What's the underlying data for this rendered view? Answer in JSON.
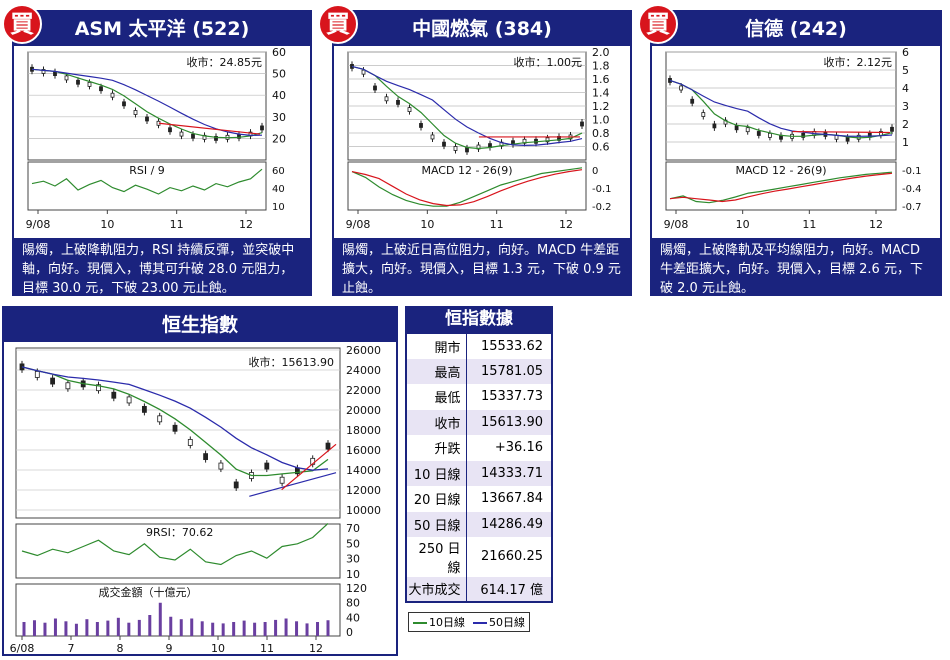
{
  "badge": "買",
  "colors": {
    "navy": "#1a237e",
    "red": "#d8141c",
    "green": "#2e8b2e",
    "blue": "#2b2bab",
    "price": "#222222"
  },
  "panels": {
    "asm": {
      "title": "ASM 太平洋 (522)",
      "close_label": "收市：24.85元",
      "ind_label": "RSI / 9",
      "desc": "陽燭，上破降軌阻力，RSI 持續反彈，並突破中軸，向好。現價入，博其可升破 28.0 元阻力，目標 30.0 元，下破 23.00 元止蝕。"
    },
    "towngas": {
      "title": "中國燃氣 (384)",
      "close_label": "收市：1.00元",
      "ind_label": "MACD 12 - 26(9)",
      "desc": "陽燭，上破近日高位阻力，向好。MACD 牛差距擴大，向好。現價入，目標 1.3 元，下破 0.9 元止蝕。"
    },
    "shunde": {
      "title": "信德 (242)",
      "close_label": "收市：2.12元",
      "ind_label": "MACD 12 - 26(9)",
      "desc": "陽燭，上破降軌及平均線阻力，向好。MACD 牛差距擴大，向好。現價入，目標 2.6 元，下破 2.0 元止蝕。"
    },
    "hsi": {
      "title": "恒生指數",
      "close_label": "收市：15613.90",
      "ind_label": "9RSI：70.62",
      "vol_label": "成交金額（十億元）"
    }
  },
  "hsi_table": {
    "title": "恒指數據",
    "rows": [
      {
        "k": "開市",
        "v": "15533.62"
      },
      {
        "k": "最高",
        "v": "15781.05"
      },
      {
        "k": "最低",
        "v": "15337.73"
      },
      {
        "k": "收市",
        "v": "15613.90"
      },
      {
        "k": "升跌",
        "v": "+36.16"
      },
      {
        "k": "10 日線",
        "v": "14333.71"
      },
      {
        "k": "20 日線",
        "v": "13667.84"
      },
      {
        "k": "50 日線",
        "v": "14286.49"
      },
      {
        "k": "250 日線",
        "v": "21660.25"
      },
      {
        "k": "大市成交",
        "v": "614.17 億"
      }
    ]
  },
  "legend": {
    "ma10": "10日線",
    "ma50": "50日線"
  },
  "chart_data": [
    {
      "id": "asm",
      "type": "line",
      "x_ticks": [
        "9/08",
        "10",
        "11",
        "12"
      ],
      "price": {
        "ylim": [
          10,
          60
        ],
        "ticks": [
          "60",
          "50",
          "40",
          "30",
          "20"
        ],
        "values": [
          52,
          51,
          50,
          48,
          46,
          45,
          43,
          40,
          36,
          32,
          29,
          27,
          24,
          22,
          21,
          20.5,
          20,
          20.5,
          21,
          22,
          24.85
        ],
        "resistance": [
          27,
          22
        ]
      },
      "indicator": {
        "kind": "RSI",
        "ylim": [
          5,
          65
        ],
        "ticks": [
          "60",
          "40",
          "10"
        ],
        "values": [
          38,
          41,
          35,
          44,
          30,
          37,
          42,
          33,
          28,
          36,
          31,
          25,
          33,
          29,
          35,
          30,
          38,
          34,
          40,
          44,
          56
        ]
      }
    },
    {
      "id": "towngas",
      "type": "line",
      "x_ticks": [
        "9/08",
        "10",
        "11",
        "12"
      ],
      "price": {
        "ylim": [
          0.5,
          2.0
        ],
        "ticks": [
          "2.0",
          "1.8",
          "1.6",
          "1.4",
          "1.2",
          "1.0",
          "0.8",
          "0.6"
        ],
        "values": [
          1.8,
          1.72,
          1.5,
          1.35,
          1.3,
          1.2,
          0.98,
          0.82,
          0.72,
          0.66,
          0.64,
          0.68,
          0.7,
          0.72,
          0.74,
          0.76,
          0.76,
          0.78,
          0.8,
          0.82,
          1.0
        ],
        "resistance": [
          0.82,
          0.82
        ]
      },
      "indicator": {
        "kind": "MACD",
        "ylim": [
          -0.22,
          0.03
        ],
        "ticks": [
          "0",
          "-0.1",
          "-0.2"
        ],
        "values": [
          -0.02,
          -0.05,
          -0.1,
          -0.14,
          -0.17,
          -0.19,
          -0.2,
          -0.2,
          -0.18,
          -0.15,
          -0.12,
          -0.09,
          -0.07,
          -0.05,
          -0.03,
          -0.02,
          -0.01,
          0.0
        ]
      }
    },
    {
      "id": "shunde",
      "type": "line",
      "x_ticks": [
        "9/08",
        "10",
        "11",
        "12"
      ],
      "price": {
        "ylim": [
          0.5,
          6.2
        ],
        "ticks": [
          "6",
          "5",
          "4",
          "3",
          "2",
          "1"
        ],
        "values": [
          4.7,
          4.3,
          3.6,
          2.9,
          2.3,
          2.5,
          2.2,
          2.1,
          1.9,
          1.8,
          1.7,
          1.75,
          1.8,
          1.9,
          1.85,
          1.7,
          1.6,
          1.7,
          1.8,
          1.9,
          2.12
        ],
        "resistance": [
          2.0,
          1.95
        ]
      },
      "indicator": {
        "kind": "MACD",
        "ylim": [
          -0.75,
          0.1
        ],
        "ticks": [
          "-0.1",
          "-0.4",
          "-0.7"
        ],
        "values": [
          -0.55,
          -0.5,
          -0.6,
          -0.62,
          -0.58,
          -0.52,
          -0.45,
          -0.42,
          -0.38,
          -0.34,
          -0.3,
          -0.26,
          -0.22,
          -0.18,
          -0.15,
          -0.12,
          -0.1,
          -0.08
        ]
      }
    },
    {
      "id": "hsi",
      "type": "line",
      "x_ticks": [
        "6/08",
        "7",
        "8",
        "9",
        "10",
        "11",
        "12"
      ],
      "price": {
        "ylim": [
          8000,
          26000
        ],
        "ticks": [
          "26000",
          "24000",
          "22000",
          "20000",
          "18000",
          "16000",
          "14000",
          "12000",
          "10000"
        ],
        "values": [
          24000,
          23200,
          22500,
          22000,
          22200,
          21800,
          21000,
          20500,
          19500,
          18500,
          17500,
          16000,
          14500,
          13500,
          11500,
          12500,
          13500,
          12000,
          13000,
          14000,
          15614
        ]
      },
      "rsi": {
        "ylim": [
          10,
          70
        ],
        "ticks": [
          "70",
          "50",
          "30",
          "10"
        ],
        "values": [
          40,
          35,
          42,
          38,
          45,
          52,
          40,
          36,
          48,
          33,
          30,
          42,
          28,
          25,
          35,
          40,
          32,
          45,
          48,
          55,
          70.62
        ]
      },
      "volume": {
        "ylim": [
          0,
          120
        ],
        "ticks": [
          "120",
          "80",
          "40",
          "0"
        ],
        "values": [
          40,
          45,
          38,
          50,
          42,
          35,
          48,
          40,
          44,
          52,
          38,
          46,
          60,
          95,
          55,
          48,
          50,
          42,
          38,
          36,
          40,
          44,
          38,
          40,
          46,
          50,
          42,
          36,
          40,
          45
        ]
      }
    }
  ]
}
